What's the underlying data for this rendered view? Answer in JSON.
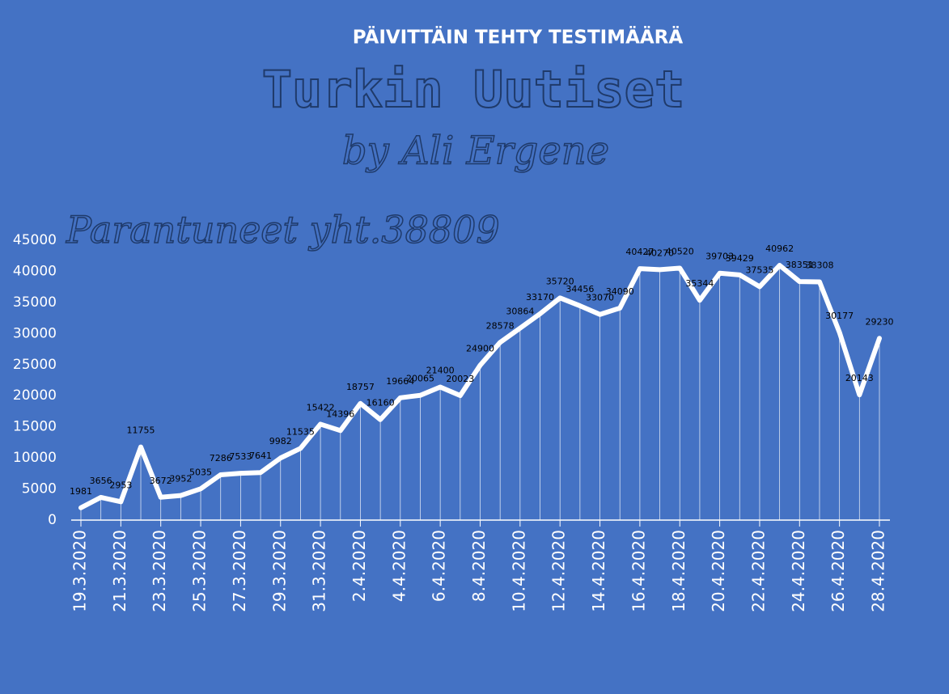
{
  "chart_data": {
    "type": "line",
    "title": "PÄIVITTÄIN TEHTY TESTIMÄÄRÄ",
    "annotations": [
      "Turkin Uutiset",
      "by Ali Ergene",
      "Parantuneet yht.38809"
    ],
    "categories": [
      "19.3.2020",
      null,
      "21.3.2020",
      null,
      "23.3.2020",
      null,
      "25.3.2020",
      null,
      "27.3.2020",
      null,
      "29.3.2020",
      null,
      "31.3.2020",
      null,
      "2.4.2020",
      null,
      "4.4.2020",
      null,
      "6.4.2020",
      null,
      "8.4.2020",
      null,
      "10.4.2020",
      null,
      "12.4.2020",
      null,
      "14.4.2020",
      null,
      "16.4.2020",
      null,
      "18.4.2020",
      null,
      "20.4.2020",
      null,
      "22.4.2020",
      null,
      "24.4.2020",
      null,
      "26.4.2020",
      null,
      "28.4.2020"
    ],
    "values": [
      1981,
      3656,
      2953,
      11755,
      3672,
      3952,
      5035,
      7286,
      7533,
      7641,
      9982,
      11535,
      15422,
      14396,
      18757,
      16160,
      19664,
      20065,
      21400,
      20023,
      24900,
      28578,
      30864,
      33170,
      35720,
      34456,
      33070,
      34090,
      40427,
      40270,
      40520,
      35344,
      39703,
      39429,
      37535,
      40962,
      38351,
      38308,
      30177,
      20143,
      29230
    ],
    "color": "#ffffff",
    "ylim": [
      0,
      45000
    ],
    "yticks": [
      0,
      5000,
      10000,
      15000,
      20000,
      25000,
      30000,
      35000,
      40000,
      45000
    ]
  }
}
